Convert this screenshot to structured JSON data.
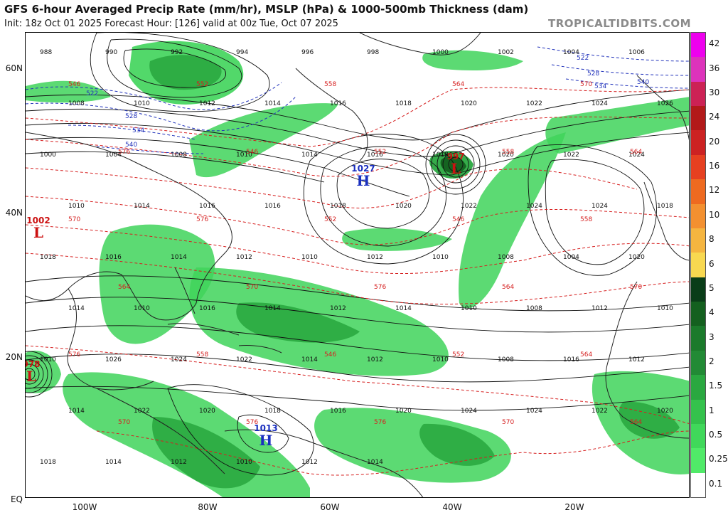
{
  "header": {
    "title": "GFS 6-hour Averaged Precip Rate (mm/hr), MSLP (hPa) & 1000-500mb Thickness (dam)",
    "subtitle": "Init: 18z Oct 01 2025   Forecast Hour: [126]   valid at 00z Tue, Oct 07 2025",
    "brand": "TROPICALTIDBITS.COM"
  },
  "axes": {
    "lat_labels": [
      "60N",
      "40N",
      "20N",
      "EQ"
    ],
    "lon_labels": [
      "100W",
      "80W",
      "60W",
      "40W",
      "20W"
    ]
  },
  "colorbar": {
    "labels": [
      "42",
      "36",
      "30",
      "24",
      "20",
      "16",
      "12",
      "10",
      "8",
      "6",
      "5",
      "4",
      "3",
      "2",
      "1.5",
      "1",
      "0.5",
      "0.25",
      "0.1"
    ],
    "colors": [
      "#ee00ee",
      "#dd33bb",
      "#cc2255",
      "#b21a1a",
      "#cc2222",
      "#e64020",
      "#ee6a20",
      "#f39030",
      "#f5b540",
      "#f8d850",
      "#0a3d18",
      "#14601f",
      "#1b7a2b",
      "#228a35",
      "#2aa840",
      "#34c24c",
      "#40d85a",
      "#50ea68",
      "#ffffff"
    ]
  },
  "pressure_centers": [
    {
      "kind": "L",
      "value": "1002",
      "color": "#cc1111"
    },
    {
      "kind": "L",
      "value": "997",
      "color": "#cc1111"
    },
    {
      "kind": "L",
      "value": "978",
      "color": "#cc1111"
    },
    {
      "kind": "H",
      "value": "1027",
      "color": "#1a2fbf"
    },
    {
      "kind": "H",
      "value": "1013",
      "color": "#1a2fbf"
    }
  ],
  "isobar_labels": [
    "988",
    "990",
    "992",
    "994",
    "996",
    "998",
    "1000",
    "1002",
    "1004",
    "1006",
    "1008",
    "1010",
    "1012",
    "1014",
    "1016",
    "1018",
    "1020",
    "1022",
    "1024",
    "1026",
    "1000",
    "1004",
    "1008",
    "1010",
    "1014",
    "1016",
    "1018",
    "1020",
    "1022",
    "1024",
    "1010",
    "1014",
    "1016",
    "1016",
    "1018",
    "1020",
    "1022",
    "1024",
    "1024",
    "1018",
    "1018",
    "1016",
    "1014",
    "1012",
    "1010",
    "1012",
    "1010",
    "1008",
    "1004",
    "1020",
    "1014",
    "1010",
    "1016",
    "1014",
    "1012",
    "1014",
    "1010",
    "1008",
    "1012",
    "1010",
    "1010",
    "1026",
    "1024",
    "1022",
    "1014",
    "1012",
    "1010",
    "1008",
    "1016",
    "1012",
    "1014",
    "1022",
    "1020",
    "1018",
    "1016",
    "1020",
    "1024",
    "1024",
    "1022",
    "1020",
    "1018",
    "1014",
    "1012",
    "1010",
    "1012",
    "1014"
  ],
  "thickness_labels": [
    "546",
    "552",
    "558",
    "564",
    "570",
    "576",
    "546",
    "552",
    "558",
    "564",
    "570",
    "576",
    "552",
    "546",
    "558",
    "564",
    "570",
    "576",
    "564",
    "570",
    "576",
    "558",
    "546",
    "552",
    "564",
    "570",
    "576",
    "576",
    "570",
    "564"
  ],
  "cold_thickness_labels": [
    "522",
    "528",
    "534",
    "540",
    "522",
    "528",
    "534",
    "540"
  ],
  "colors": {
    "isobar": "#111111",
    "thickness_warm": "#d62020",
    "thickness_cold": "#2233bb",
    "precip_light": "#50ea68",
    "precip_mid": "#2aa840",
    "precip_dark": "#14601f",
    "land_line": "#222222"
  }
}
